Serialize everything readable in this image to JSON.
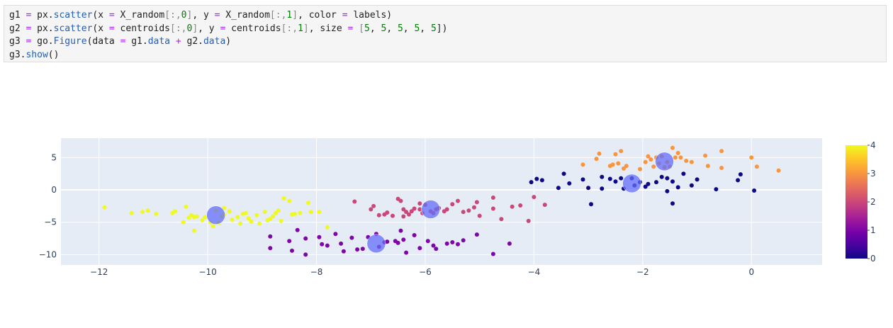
{
  "code": {
    "lines": [
      [
        [
          "g1 ",
          "t"
        ],
        [
          "=",
          "o"
        ],
        [
          " px.",
          "t"
        ],
        [
          "scatter",
          "f"
        ],
        [
          "(x ",
          "t"
        ],
        [
          "=",
          "o"
        ],
        [
          " X_random",
          "t"
        ],
        [
          "[:,",
          "d"
        ],
        [
          "0",
          "n"
        ],
        [
          "]",
          "d"
        ],
        [
          ", y ",
          "t"
        ],
        [
          "=",
          "o"
        ],
        [
          " X_random",
          "t"
        ],
        [
          "[:,",
          "d"
        ],
        [
          "1",
          "n"
        ],
        [
          "]",
          "d"
        ],
        [
          ", color ",
          "t"
        ],
        [
          "=",
          "o"
        ],
        [
          " labels)",
          "t"
        ]
      ],
      [
        [
          "g2 ",
          "t"
        ],
        [
          "=",
          "o"
        ],
        [
          " px.",
          "t"
        ],
        [
          "scatter",
          "f"
        ],
        [
          "(x ",
          "t"
        ],
        [
          "=",
          "o"
        ],
        [
          " centroids",
          "t"
        ],
        [
          "[:,",
          "d"
        ],
        [
          "0",
          "n"
        ],
        [
          "]",
          "d"
        ],
        [
          ", y ",
          "t"
        ],
        [
          "=",
          "o"
        ],
        [
          " centroids",
          "t"
        ],
        [
          "[:,",
          "d"
        ],
        [
          "1",
          "n"
        ],
        [
          "]",
          "d"
        ],
        [
          ", size ",
          "t"
        ],
        [
          "=",
          "o"
        ],
        [
          " [",
          "d"
        ],
        [
          "5",
          "n"
        ],
        [
          ", ",
          "t"
        ],
        [
          "5",
          "n"
        ],
        [
          ", ",
          "t"
        ],
        [
          "5",
          "n"
        ],
        [
          ", ",
          "t"
        ],
        [
          "5",
          "n"
        ],
        [
          ", ",
          "t"
        ],
        [
          "5",
          "n"
        ],
        [
          "])",
          "t"
        ]
      ],
      [
        [
          "g3 ",
          "t"
        ],
        [
          "=",
          "o"
        ],
        [
          " go.",
          "t"
        ],
        [
          "Figure",
          "f"
        ],
        [
          "(data ",
          "t"
        ],
        [
          "=",
          "o"
        ],
        [
          " g1.",
          "t"
        ],
        [
          "data",
          "f"
        ],
        [
          " ",
          "t"
        ],
        [
          "+",
          "o"
        ],
        [
          " g2.",
          "t"
        ],
        [
          "data",
          "f"
        ],
        [
          ")",
          "t"
        ]
      ],
      [
        [
          "g3.",
          "t"
        ],
        [
          "show",
          "f"
        ],
        [
          "()",
          "t"
        ]
      ]
    ]
  },
  "chart_data": {
    "type": "scatter",
    "xlim": [
      -12.7,
      1.3
    ],
    "ylim": [
      -11.6,
      8
    ],
    "x_ticks": [
      -12,
      -10,
      -8,
      -6,
      -4,
      -2,
      0
    ],
    "x_tick_labels": [
      "−12",
      "−10",
      "−8",
      "−6",
      "−4",
      "−2",
      "0"
    ],
    "y_ticks": [
      -10,
      -5,
      0,
      5
    ],
    "y_tick_labels": [
      "−10",
      "−5",
      "0",
      "5"
    ],
    "grid": true,
    "colorscale": [
      "#0d0887",
      "#46039f",
      "#7201a8",
      "#9c179e",
      "#bd3786",
      "#d8576b",
      "#ed7953",
      "#fb9f3a",
      "#fdca26",
      "#f0f921"
    ],
    "colorbar": {
      "min": 0,
      "max": 4,
      "ticks": [
        "0",
        "1",
        "2",
        "3",
        "4"
      ],
      "position": "right"
    },
    "series": [
      {
        "label_value": 4,
        "points": [
          [
            -11.9,
            -2.7
          ],
          [
            -11.4,
            -3.6
          ],
          [
            -11.2,
            -3.4
          ],
          [
            -11.1,
            -3.2
          ],
          [
            -10.95,
            -3.7
          ],
          [
            -10.65,
            -3.6
          ],
          [
            -10.6,
            -3.3
          ],
          [
            -10.45,
            -5
          ],
          [
            -10.4,
            -2.6
          ],
          [
            -10.35,
            -4.3
          ],
          [
            -10.3,
            -3.9
          ],
          [
            -10.25,
            -4.2
          ],
          [
            -10.25,
            -6.3
          ],
          [
            -10.2,
            -4.1
          ],
          [
            -10.1,
            -4.7
          ],
          [
            -10.05,
            -4.2
          ],
          [
            -9.95,
            -5
          ],
          [
            -9.9,
            -5.6
          ],
          [
            -9.8,
            -5.1
          ],
          [
            -9.75,
            -4.1
          ],
          [
            -9.7,
            -3.8
          ],
          [
            -9.6,
            -3.3
          ],
          [
            -9.55,
            -4.6
          ],
          [
            -9.45,
            -4.2
          ],
          [
            -9.4,
            -5.2
          ],
          [
            -9.35,
            -3.7
          ],
          [
            -9.3,
            -3.6
          ],
          [
            -9.25,
            -4.4
          ],
          [
            -9.2,
            -4.9
          ],
          [
            -9.1,
            -3.9
          ],
          [
            -9.05,
            -5.2
          ],
          [
            -8.95,
            -3.4
          ],
          [
            -8.9,
            -4.7
          ],
          [
            -8.85,
            -4.5
          ],
          [
            -8.8,
            -4.1
          ],
          [
            -8.75,
            -3.6
          ],
          [
            -8.7,
            -3.2
          ],
          [
            -8.65,
            -4.8
          ],
          [
            -8.6,
            -1.3
          ],
          [
            -8.5,
            -1.7
          ],
          [
            -8.45,
            -3.8
          ],
          [
            -8.4,
            -3.7
          ],
          [
            -8.3,
            -3.6
          ],
          [
            -8.15,
            -2
          ],
          [
            -8.1,
            -3.4
          ],
          [
            -7.95,
            -3.4
          ],
          [
            -7.8,
            -5.8
          ],
          [
            -9.7,
            -2.8
          ],
          [
            -9.85,
            -3.2
          ]
        ]
      },
      {
        "label_value": 3,
        "points": [
          [
            -3.1,
            3.9
          ],
          [
            -2.85,
            4.8
          ],
          [
            -2.8,
            5.6
          ],
          [
            -2.6,
            3.7
          ],
          [
            -2.55,
            3.9
          ],
          [
            -2.5,
            5.5
          ],
          [
            -2.45,
            4.1
          ],
          [
            -2.4,
            6.0
          ],
          [
            -2.35,
            3.3
          ],
          [
            -2.3,
            3.7
          ],
          [
            -2.05,
            3.2
          ],
          [
            -1.95,
            4.3
          ],
          [
            -1.9,
            5.2
          ],
          [
            -1.85,
            4.7
          ],
          [
            -1.8,
            3.6
          ],
          [
            -1.75,
            5.0
          ],
          [
            -1.7,
            4.1
          ],
          [
            -1.6,
            3.5
          ],
          [
            -1.55,
            4.3
          ],
          [
            -1.5,
            3.6
          ],
          [
            -1.45,
            6.5
          ],
          [
            -1.35,
            5.7
          ],
          [
            -1.3,
            5.0
          ],
          [
            -1.2,
            4.5
          ],
          [
            -1.1,
            4.3
          ],
          [
            -0.85,
            5.3
          ],
          [
            -0.8,
            3.7
          ],
          [
            -0.55,
            6.0
          ],
          [
            -0.55,
            3.4
          ],
          [
            0.0,
            5.0
          ],
          [
            0.1,
            3.6
          ],
          [
            0.5,
            3.0
          ],
          [
            -1.65,
            5.2
          ],
          [
            -1.4,
            5.0
          ]
        ]
      },
      {
        "label_value": 2,
        "points": [
          [
            -7.3,
            -1.8
          ],
          [
            -7.0,
            -3.0
          ],
          [
            -6.95,
            -2.5
          ],
          [
            -6.85,
            -3.9
          ],
          [
            -6.75,
            -3.8
          ],
          [
            -6.7,
            -3.5
          ],
          [
            -6.6,
            -4.0
          ],
          [
            -6.5,
            -1.4
          ],
          [
            -6.45,
            -1.7
          ],
          [
            -6.4,
            -3.0
          ],
          [
            -6.35,
            -3.4
          ],
          [
            -6.3,
            -3.8
          ],
          [
            -6.25,
            -3.3
          ],
          [
            -6.2,
            -2.9
          ],
          [
            -6.1,
            -3.0
          ],
          [
            -6.05,
            -3.6
          ],
          [
            -6.0,
            -2.3
          ],
          [
            -5.9,
            -3.3
          ],
          [
            -5.85,
            -3.6
          ],
          [
            -5.8,
            -3.0
          ],
          [
            -5.75,
            -2.8
          ],
          [
            -5.65,
            -3.3
          ],
          [
            -5.6,
            -3.0
          ],
          [
            -5.5,
            -2.2
          ],
          [
            -5.4,
            -1.7
          ],
          [
            -5.3,
            -3.4
          ],
          [
            -5.2,
            -3.2
          ],
          [
            -5.1,
            -2.7
          ],
          [
            -5.05,
            -1.9
          ],
          [
            -4.75,
            -2.9
          ],
          [
            -4.75,
            -1.2
          ],
          [
            -4.6,
            -4.5
          ],
          [
            -4.4,
            -2.6
          ],
          [
            -4.25,
            -2.4
          ],
          [
            -4.1,
            -4.8
          ],
          [
            -4.0,
            -1.1
          ],
          [
            -3.8,
            -2.3
          ],
          [
            -5.0,
            -4.0
          ],
          [
            -6.1,
            -2.1
          ],
          [
            -6.4,
            -4.1
          ]
        ]
      },
      {
        "label_value": 1,
        "points": [
          [
            -8.85,
            -7.2
          ],
          [
            -8.85,
            -9.0
          ],
          [
            -8.5,
            -7.9
          ],
          [
            -8.45,
            -9.4
          ],
          [
            -8.35,
            -6.2
          ],
          [
            -8.2,
            -7.5
          ],
          [
            -7.95,
            -7.3
          ],
          [
            -7.9,
            -8.4
          ],
          [
            -7.8,
            -8.6
          ],
          [
            -7.65,
            -6.8
          ],
          [
            -7.55,
            -8.3
          ],
          [
            -7.5,
            -9.5
          ],
          [
            -7.35,
            -7.4
          ],
          [
            -7.25,
            -9.2
          ],
          [
            -7.15,
            -9.1
          ],
          [
            -7.05,
            -7.3
          ],
          [
            -6.9,
            -6.8
          ],
          [
            -6.85,
            -8.8
          ],
          [
            -6.75,
            -8.1
          ],
          [
            -6.7,
            -8.0
          ],
          [
            -6.55,
            -7.9
          ],
          [
            -6.45,
            -6.3
          ],
          [
            -6.4,
            -7.7
          ],
          [
            -6.35,
            -9.7
          ],
          [
            -6.2,
            -7.0
          ],
          [
            -6.1,
            -9.0
          ],
          [
            -5.95,
            -7.9
          ],
          [
            -5.85,
            -8.6
          ],
          [
            -5.8,
            -9.1
          ],
          [
            -5.6,
            -8.3
          ],
          [
            -5.5,
            -8.1
          ],
          [
            -5.4,
            -8.4
          ],
          [
            -5.3,
            -7.8
          ],
          [
            -5.05,
            -6.9
          ],
          [
            -4.75,
            -9.9
          ],
          [
            -4.45,
            -8.3
          ],
          [
            -6.5,
            -8.2
          ],
          [
            -8.2,
            -10.0
          ]
        ]
      },
      {
        "label_value": 0,
        "points": [
          [
            -4.05,
            1.2
          ],
          [
            -3.95,
            1.7
          ],
          [
            -3.85,
            1.5
          ],
          [
            -3.55,
            0.3
          ],
          [
            -3.45,
            2.5
          ],
          [
            -3.35,
            1.0
          ],
          [
            -3.1,
            1.6
          ],
          [
            -3.0,
            0.3
          ],
          [
            -2.95,
            -2.2
          ],
          [
            -2.75,
            2.0
          ],
          [
            -2.6,
            1.7
          ],
          [
            -2.5,
            1.3
          ],
          [
            -2.4,
            1.8
          ],
          [
            -2.35,
            0.2
          ],
          [
            -2.2,
            1.8
          ],
          [
            -2.15,
            0.7
          ],
          [
            -2.05,
            1.2
          ],
          [
            -1.95,
            0.5
          ],
          [
            -1.75,
            1.2
          ],
          [
            -1.65,
            2.0
          ],
          [
            -1.55,
            1.8
          ],
          [
            -1.55,
            -0.2
          ],
          [
            -1.45,
            1.3
          ],
          [
            -1.35,
            0.4
          ],
          [
            -1.25,
            2.5
          ],
          [
            -1.1,
            0.7
          ],
          [
            -1.0,
            1.6
          ],
          [
            -0.65,
            0.1
          ],
          [
            -0.25,
            1.5
          ],
          [
            -0.2,
            2.4
          ],
          [
            0.05,
            -0.1
          ],
          [
            -1.45,
            -2.1
          ],
          [
            -2.75,
            0.2
          ],
          [
            -1.9,
            0.9
          ]
        ]
      }
    ],
    "centroids": {
      "points": [
        [
          -9.85,
          -3.9
        ],
        [
          -6.9,
          -8.3
        ],
        [
          -5.9,
          -3.0
        ],
        [
          -2.2,
          1.0
        ],
        [
          -1.6,
          4.4
        ]
      ],
      "sizes": [
        5,
        5,
        5,
        5,
        5
      ],
      "color": "#636efa"
    }
  }
}
